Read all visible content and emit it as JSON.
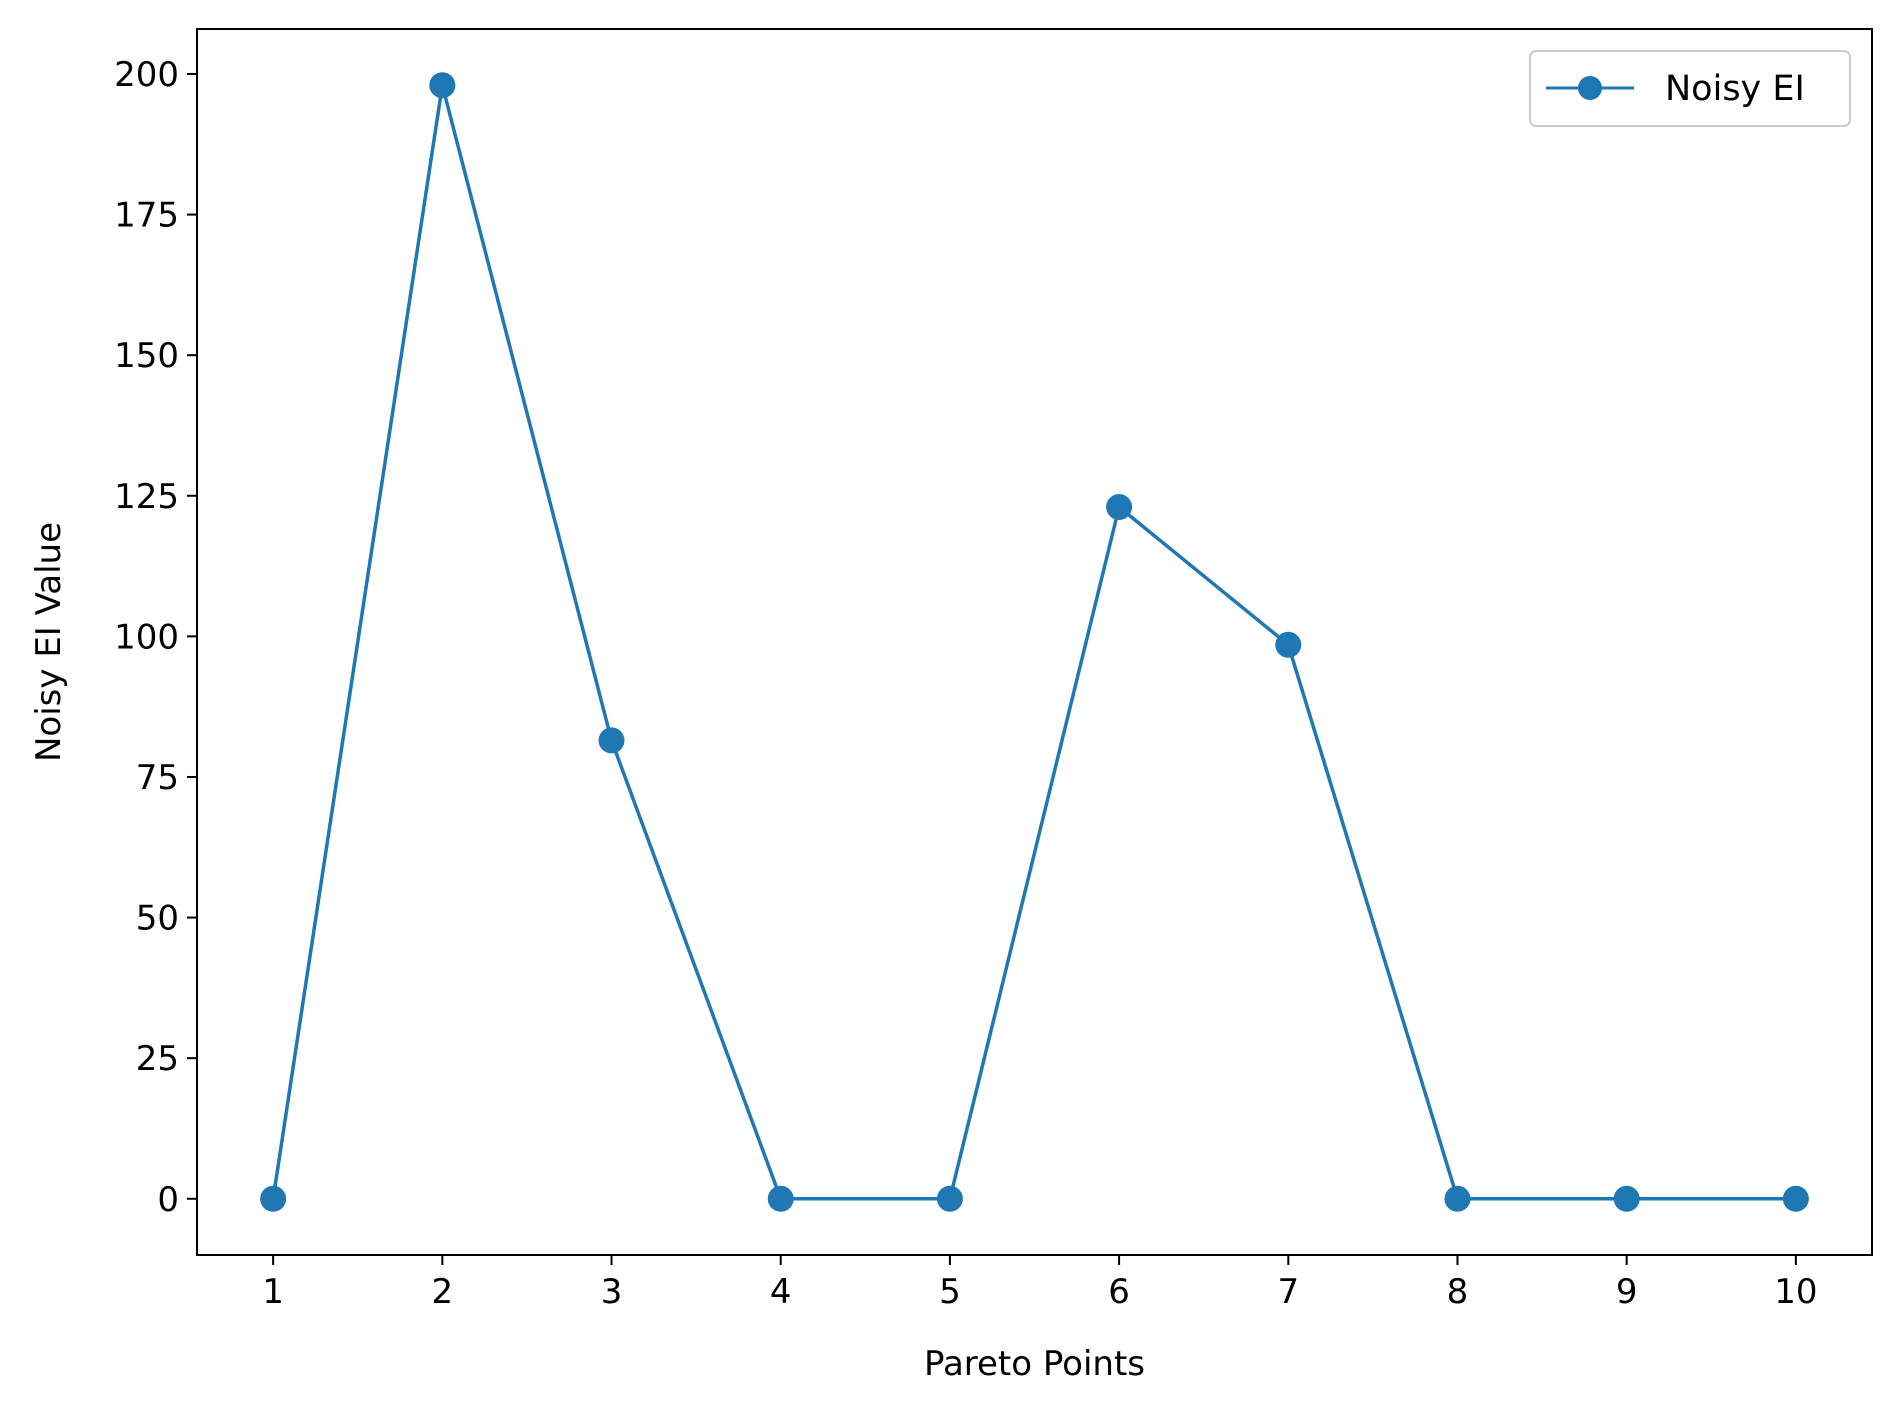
{
  "chart_data": {
    "type": "line",
    "x": [
      1,
      2,
      3,
      4,
      5,
      6,
      7,
      8,
      9,
      10
    ],
    "series": [
      {
        "name": "Noisy EI",
        "values": [
          0,
          198,
          81.5,
          0,
          0,
          123,
          98.5,
          0,
          0,
          0
        ],
        "color": "#1f77b4",
        "marker": "circle"
      }
    ],
    "xlabel": "Pareto Points",
    "ylabel": "Noisy EI Value",
    "x_ticks": [
      1,
      2,
      3,
      4,
      5,
      6,
      7,
      8,
      9,
      10
    ],
    "y_ticks": [
      0,
      25,
      50,
      75,
      100,
      125,
      150,
      175,
      200
    ],
    "xlim": [
      0.55,
      10.45
    ],
    "ylim": [
      -10,
      208
    ],
    "grid": false,
    "legend_position": "top-right"
  }
}
